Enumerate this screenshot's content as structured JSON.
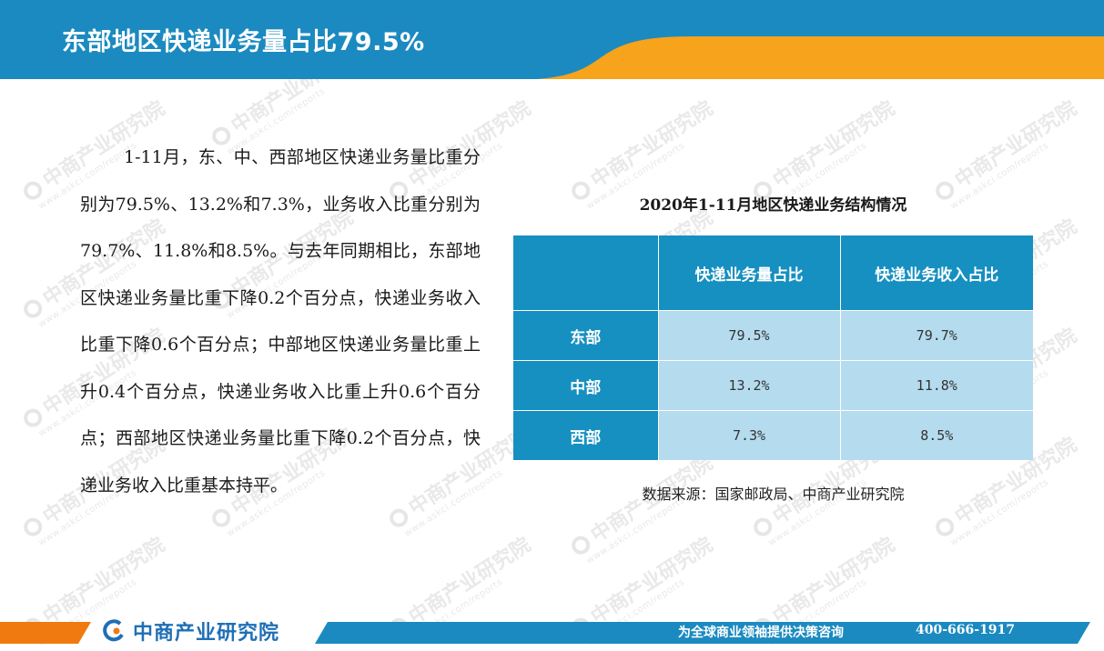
{
  "header": {
    "title": "东部地区快递业务量占比79.5%",
    "colors": {
      "blue": "#1b8ac0",
      "orange": "#f7a31b"
    }
  },
  "paragraph": "1-11月，东、中、西部地区快递业务量比重分别为79.5%、13.2%和7.3%，业务收入比重分别为79.7%、11.8%和8.5%。与去年同期相比，东部地区快递业务量比重下降0.2个百分点，快递业务收入比重下降0.6个百分点；中部地区快递业务量比重上升0.4个百分点，快递业务收入比重上升0.6个百分点；西部地区快递业务量比重下降0.2个百分点，快递业务收入比重基本持平。",
  "table": {
    "title": "2020年1-11月地区快递业务结构情况",
    "headers": [
      "",
      "快递业务量占比",
      "快递业务收入占比"
    ],
    "rows": [
      {
        "region": "东部",
        "volume": "79.5%",
        "revenue": "79.7%"
      },
      {
        "region": "中部",
        "volume": "13.2%",
        "revenue": "11.8%"
      },
      {
        "region": "西部",
        "volume": "7.3%",
        "revenue": "8.5%"
      }
    ],
    "colors": {
      "header_bg": "#1690c0",
      "cell_bg": "#b5dcee"
    }
  },
  "source": "数据来源：国家邮政局、中商产业研究院",
  "watermark": {
    "name": "中商产业研究院",
    "url": "www.askci.com/reports"
  },
  "footer": {
    "logo_text": "中商产业研究院",
    "slogan": "为全球商业领袖提供决策咨询",
    "phone": "400-666-1917",
    "colors": {
      "blue": "#1b8ac0",
      "orange": "#f07a10"
    }
  }
}
